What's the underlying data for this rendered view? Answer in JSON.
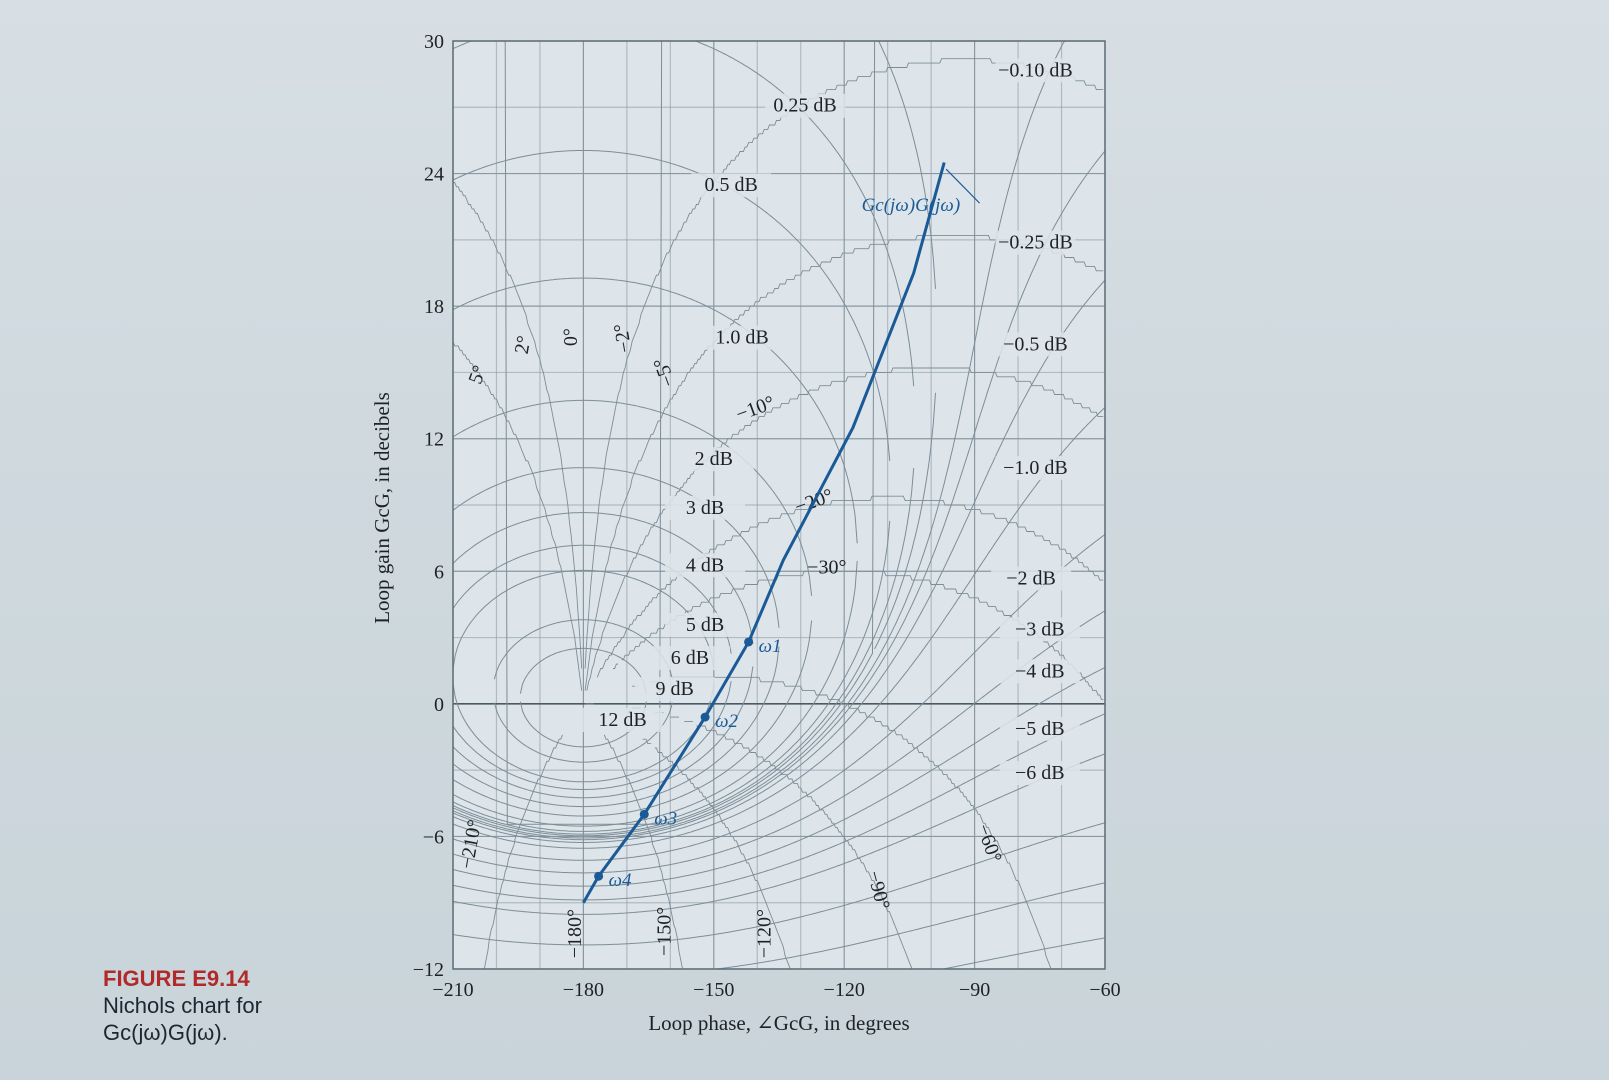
{
  "caption": {
    "figure_label": "FIGURE E9.14",
    "line1": "Nichols chart for",
    "line2": "Gc(jω)G(jω)."
  },
  "chart_data": {
    "type": "line",
    "title": "",
    "xlabel": "Loop phase, ∠GcG, in degrees",
    "ylabel": "Loop gain GcG, in decibels",
    "xlim": [
      -210,
      -60
    ],
    "ylim": [
      -12,
      30
    ],
    "xticks": [
      -210,
      -180,
      -150,
      -120,
      -90,
      -60
    ],
    "yticks": [
      -12,
      -6,
      0,
      6,
      12,
      18,
      24,
      30
    ],
    "grid": true,
    "series": [
      {
        "name": "Gc(jω)G(jω)",
        "color": "#1a5a96",
        "x": [
          -180,
          -176.5,
          -166,
          -152,
          -142,
          -134,
          -118,
          -104,
          -97
        ],
        "y": [
          -9,
          -7.8,
          -5,
          -0.6,
          2.8,
          6.5,
          12.5,
          19.5,
          24.5
        ]
      }
    ],
    "frequency_markers": [
      {
        "label": "ω1",
        "x": -142,
        "y": 2.8
      },
      {
        "label": "ω2",
        "x": -152,
        "y": -0.6
      },
      {
        "label": "ω3",
        "x": -166,
        "y": -5
      },
      {
        "label": "ω4",
        "x": -176.5,
        "y": -7.8
      }
    ],
    "curve_label": {
      "text": "Gc(jω)G(jω)",
      "x": -116,
      "y": 22.3
    },
    "magnitude_contour_labels": [
      {
        "text": "0.25 dB",
        "x": -129,
        "y": 26.8
      },
      {
        "text": "0.5 dB",
        "x": -146,
        "y": 23.2
      },
      {
        "text": "1.0 dB",
        "x": -143.5,
        "y": 16.3
      },
      {
        "text": "2 dB",
        "x": -150,
        "y": 10.8
      },
      {
        "text": "3 dB",
        "x": -152,
        "y": 8.6
      },
      {
        "text": "4 dB",
        "x": -152,
        "y": 6
      },
      {
        "text": "5 dB",
        "x": -152,
        "y": 3.3
      },
      {
        "text": "6 dB",
        "x": -155.5,
        "y": 1.8
      },
      {
        "text": "9 dB",
        "x": -159,
        "y": 0.4
      },
      {
        "text": "12 dB",
        "x": -171,
        "y": -1
      },
      {
        "text": "−0.10 dB",
        "x": -76,
        "y": 28.4
      },
      {
        "text": "−0.25 dB",
        "x": -76,
        "y": 20.6
      },
      {
        "text": "−0.5 dB",
        "x": -76,
        "y": 16
      },
      {
        "text": "−1.0 dB",
        "x": -76,
        "y": 10.4
      },
      {
        "text": "−2 dB",
        "x": -77,
        "y": 5.4
      },
      {
        "text": "−3 dB",
        "x": -75,
        "y": 3.1
      },
      {
        "text": "−4 dB",
        "x": -75,
        "y": 1.2
      },
      {
        "text": "−5 dB",
        "x": -75,
        "y": -1.4
      },
      {
        "text": "−6 dB",
        "x": -75,
        "y": -3.4
      }
    ],
    "phase_contour_labels": [
      {
        "text": "5°",
        "x": -203,
        "y": 14.8,
        "rot": -70
      },
      {
        "text": "2°",
        "x": -192.5,
        "y": 16.2,
        "rot": -80
      },
      {
        "text": "0°",
        "x": -181.5,
        "y": 16.6,
        "rot": -90
      },
      {
        "text": "−2°",
        "x": -169.5,
        "y": 16.6,
        "rot": -100
      },
      {
        "text": "−5°",
        "x": -160,
        "y": 15.1,
        "rot": -110
      },
      {
        "text": "−10°",
        "x": -140,
        "y": 13.1,
        "rot": -20
      },
      {
        "text": "−20°",
        "x": -126.5,
        "y": 8.9,
        "rot": -20
      },
      {
        "text": "−30°",
        "x": -124,
        "y": 5.9,
        "rot": 0
      },
      {
        "text": "−60°",
        "x": -88,
        "y": -6.4,
        "rot": 70
      },
      {
        "text": "−90°",
        "x": -113.5,
        "y": -8.5,
        "rot": 75
      },
      {
        "text": "−120°",
        "x": -137,
        "y": -10.4,
        "rot": -90
      },
      {
        "text": "−150°",
        "x": -160,
        "y": -10.3,
        "rot": -90
      },
      {
        "text": "−180°",
        "x": -180.5,
        "y": -10.4,
        "rot": -90
      },
      {
        "text": "−210°",
        "x": -204.5,
        "y": -6.4,
        "rot": -80
      }
    ]
  }
}
